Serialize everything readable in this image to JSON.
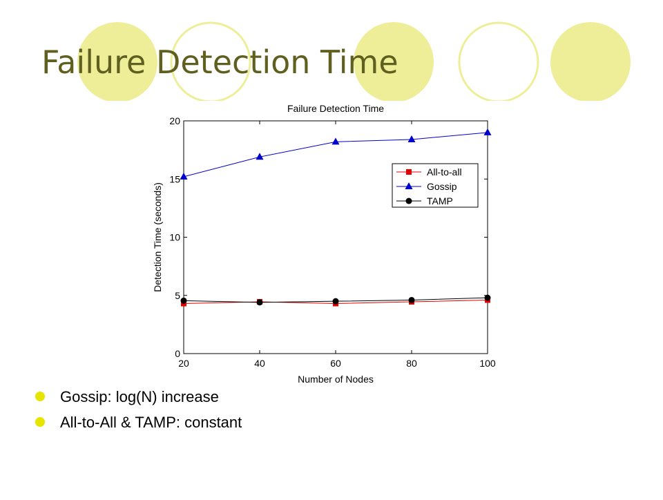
{
  "slide": {
    "title": "Failure Detection Time",
    "bullets": [
      "Gossip: log(N) increase",
      "All-to-All & TAMP: constant"
    ]
  },
  "chart_data": {
    "type": "line",
    "title": "Failure Detection Time",
    "x_label": "Number of Nodes",
    "y_label": "Detection Time (seconds)",
    "x": [
      20,
      40,
      60,
      80,
      100
    ],
    "series": [
      {
        "name": "All-to-all",
        "color": "#e00000",
        "marker": "square",
        "values": [
          4.3,
          4.45,
          4.3,
          4.45,
          4.6
        ]
      },
      {
        "name": "Gossip",
        "color": "#0000cc",
        "marker": "triangle",
        "values": [
          15.2,
          16.9,
          18.2,
          18.4,
          19.0
        ]
      },
      {
        "name": "TAMP",
        "color": "#000000",
        "marker": "circle",
        "values": [
          4.55,
          4.4,
          4.5,
          4.6,
          4.8
        ]
      }
    ],
    "xlim": [
      20,
      100
    ],
    "xticks": [
      20,
      40,
      60,
      80,
      100
    ],
    "ylim": [
      0,
      20
    ],
    "yticks": [
      0,
      5,
      10,
      15,
      20
    ],
    "grid": false,
    "legend": "upper right"
  }
}
